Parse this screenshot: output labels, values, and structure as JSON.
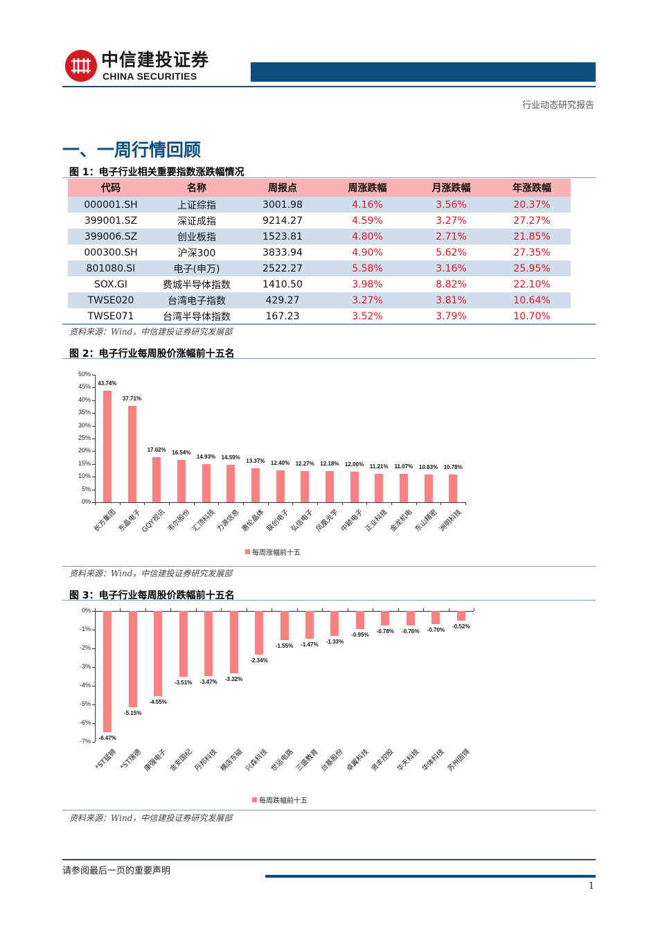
{
  "header": {
    "logo_cn": "中信建投证券",
    "logo_en": "CHINA SECURITIES",
    "report_type": "行业动态研究报告",
    "brand_color": "#0b4f7c",
    "logo_color": "#d7181f"
  },
  "section": {
    "title": "一、一周行情回顾"
  },
  "figure1": {
    "title": "图 1：电子行业相关重要指数涨跌幅情况",
    "columns": [
      "代码",
      "名称",
      "周报点",
      "周涨跌幅",
      "月涨跌幅",
      "年涨跌幅"
    ],
    "rows": [
      [
        "000001.SH",
        "上证综指",
        "3001.98",
        "4.16%",
        "3.56%",
        "20.37%"
      ],
      [
        "399001.SZ",
        "深证成指",
        "9214.27",
        "4.59%",
        "3.27%",
        "27.27%"
      ],
      [
        "399006.SZ",
        "创业板指",
        "1523.81",
        "4.80%",
        "2.71%",
        "21.85%"
      ],
      [
        "000300.SH",
        "沪深300",
        "3833.94",
        "4.90%",
        "5.62%",
        "27.35%"
      ],
      [
        "801080.SI",
        "电子(申万)",
        "2522.27",
        "5.58%",
        "3.16%",
        "25.95%"
      ],
      [
        "SOX.GI",
        "费城半导体指数",
        "1410.50",
        "3.98%",
        "8.82%",
        "22.10%"
      ],
      [
        "TWSE020",
        "台湾电子指数",
        "429.27",
        "3.27%",
        "3.81%",
        "10.64%"
      ],
      [
        "TWSE071",
        "台湾半导体指数",
        "167.23",
        "3.52%",
        "3.79%",
        "10.70%"
      ]
    ],
    "source": "资料来源：Wind，中信建投证券研究发展部"
  },
  "figure2": {
    "title": "图 2：电子行业每周股价涨幅前十五名",
    "source": "资料来源：Wind，中信建投证券研究发展部"
  },
  "figure3": {
    "title": "图 3：电子行业每周股价跌幅前十五名",
    "source": "资料来源：Wind，中信建投证券研究发展部"
  },
  "chart_data": [
    {
      "type": "bar",
      "title": "电子行业每周股价涨幅前十五名",
      "categories": [
        "长方集团",
        "东晶电子",
        "GQY视讯",
        "韦尔股份",
        "汇顶科技",
        "力源信息",
        "惠伦晶体",
        "联创电子",
        "弘信电子",
        "凤凰光学",
        "中颖电子",
        "正业科技",
        "金龙机电",
        "东山精密",
        "洲明科技"
      ],
      "series": [
        {
          "name": "每周涨幅前十五",
          "values": [
            43.74,
            37.71,
            17.62,
            16.54,
            14.93,
            14.59,
            13.37,
            12.4,
            12.27,
            12.18,
            12.0,
            11.21,
            11.07,
            10.83,
            10.78
          ]
        }
      ],
      "value_labels": [
        "43.74%",
        "37.71%",
        "17.62%",
        "16.54%",
        "14.93%",
        "14.59%",
        "13.37%",
        "12.40%",
        "12.27%",
        "12.18%",
        "12.00%",
        "11.21%",
        "11.07%",
        "10.83%",
        "10.78%"
      ],
      "yticks": [
        "50%",
        "45%",
        "40%",
        "35%",
        "30%",
        "25%",
        "20%",
        "15%",
        "10%",
        "5%",
        "0%"
      ],
      "ylim": [
        0,
        50
      ],
      "xlabel": "",
      "ylabel": "",
      "legend": "每周涨幅前十五",
      "legend_position": "bottom",
      "bar_color": "#ff8080",
      "grid": false
    },
    {
      "type": "bar",
      "title": "电子行业每周股价跌幅前十五名",
      "categories": [
        "*ST猛狮",
        "*ST瑞德",
        "康强电子",
        "金安国纪",
        "丹邦科技",
        "横店东磁",
        "兴森科技",
        "世运电路",
        "三盛教育",
        "台基股份",
        "卓翼科技",
        "贤丰控股",
        "华天科技",
        "华体科技",
        "苏州固锝"
      ],
      "series": [
        {
          "name": "每周跌幅前十五",
          "values": [
            -6.47,
            -5.15,
            -4.55,
            -3.51,
            -3.47,
            -3.32,
            -2.34,
            -1.55,
            -1.47,
            -1.33,
            -0.95,
            -0.78,
            -0.76,
            -0.7,
            -0.52
          ]
        }
      ],
      "value_labels": [
        "-6.47%",
        "-5.15%",
        "-4.55%",
        "-3.51%",
        "-3.47%",
        "-3.32%",
        "-2.34%",
        "-1.55%",
        "-1.47%",
        "-1.33%",
        "-0.95%",
        "-0.78%",
        "-0.76%",
        "-0.70%",
        "-0.52%"
      ],
      "yticks": [
        "0%",
        "-1%",
        "-2%",
        "-3%",
        "-4%",
        "-5%",
        "-6%",
        "-7%"
      ],
      "ylim": [
        -7,
        0
      ],
      "xlabel": "",
      "ylabel": "",
      "legend": "每周跌幅前十五",
      "legend_position": "bottom",
      "bar_color": "#ff8080",
      "grid": false
    }
  ],
  "footer": {
    "disclaimer": "请参阅最后一页的重要声明",
    "page_number": "1"
  }
}
